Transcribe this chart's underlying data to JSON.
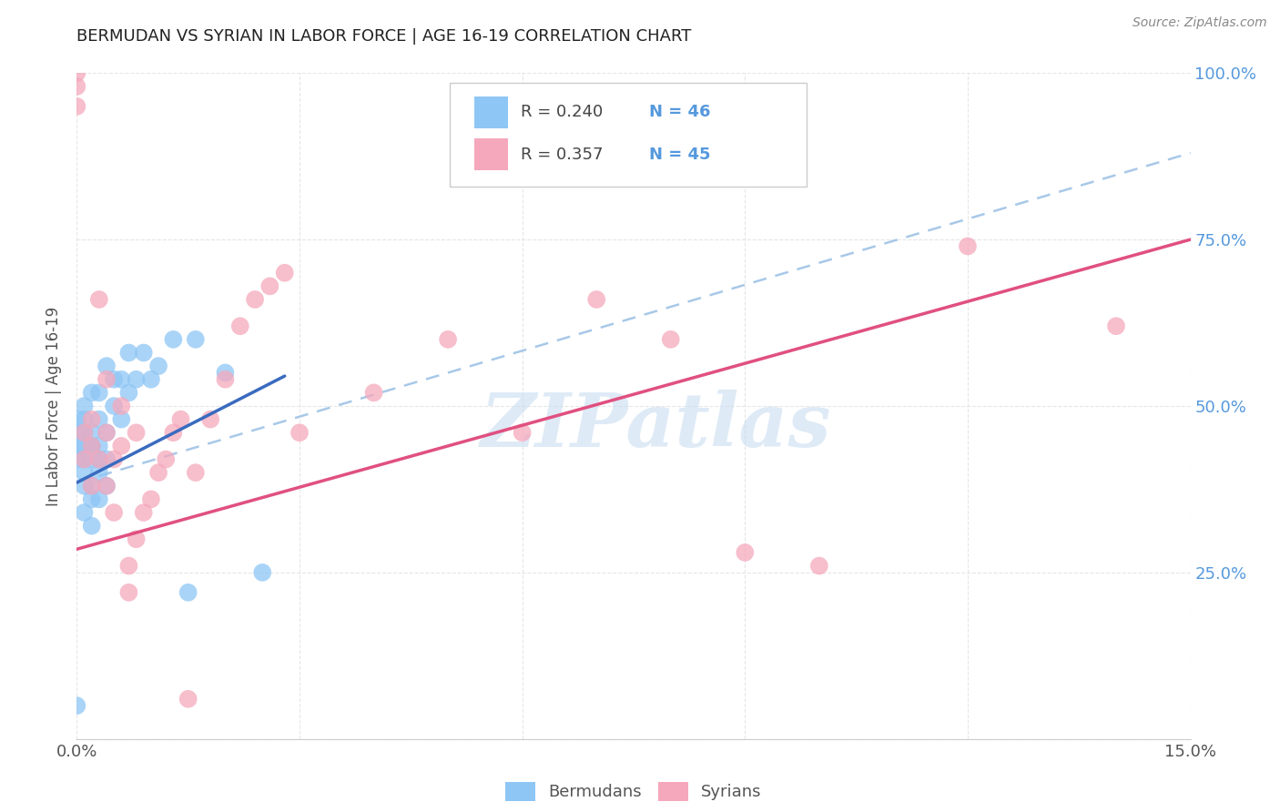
{
  "title": "BERMUDAN VS SYRIAN IN LABOR FORCE | AGE 16-19 CORRELATION CHART",
  "source": "Source: ZipAtlas.com",
  "ylabel": "In Labor Force | Age 16-19",
  "xlim": [
    0.0,
    0.15
  ],
  "ylim": [
    0.0,
    1.0
  ],
  "xtick_positions": [
    0.0,
    0.03,
    0.06,
    0.09,
    0.12,
    0.15
  ],
  "xticklabels": [
    "0.0%",
    "",
    "",
    "",
    "",
    "15.0%"
  ],
  "ytick_positions": [
    0.0,
    0.25,
    0.5,
    0.75,
    1.0
  ],
  "ytick_right_labels": [
    "",
    "25.0%",
    "50.0%",
    "75.0%",
    "100.0%"
  ],
  "bermudan_color": "#8ec6f5",
  "syrian_color": "#f5a8bc",
  "bermudan_line_color": "#3a6bbf",
  "syrian_line_color": "#e05080",
  "dashed_line_color": "#a8c8e8",
  "background_color": "#ffffff",
  "grid_color": "#e0e0e0",
  "watermark_text": "ZIPatlas",
  "watermark_color": "#c8ddf0",
  "legend_label1": "R = 0.240  N = 46",
  "legend_label2": "R = 0.357  N = 45",
  "bottom_label1": "Bermudans",
  "bottom_label2": "Syrians",
  "title_color": "#222222",
  "source_color": "#888888",
  "axis_label_color": "#555555",
  "right_tick_color": "#5599dd",
  "bermudan_x": [
    0.0,
    0.0,
    0.0,
    0.0,
    0.0,
    0.001,
    0.001,
    0.001,
    0.001,
    0.001,
    0.001,
    0.002,
    0.002,
    0.002,
    0.002,
    0.002,
    0.003,
    0.003,
    0.003,
    0.003,
    0.004,
    0.004,
    0.004,
    0.005,
    0.005,
    0.006,
    0.006,
    0.007,
    0.007,
    0.008,
    0.009,
    0.01,
    0.011,
    0.013,
    0.015,
    0.016,
    0.02,
    0.025,
    0.001,
    0.002,
    0.003,
    0.001,
    0.002,
    0.004,
    0.003,
    0.002
  ],
  "bermudan_y": [
    0.05,
    0.42,
    0.44,
    0.46,
    0.48,
    0.38,
    0.42,
    0.44,
    0.46,
    0.48,
    0.5,
    0.36,
    0.42,
    0.44,
    0.46,
    0.52,
    0.4,
    0.44,
    0.48,
    0.52,
    0.42,
    0.46,
    0.56,
    0.5,
    0.54,
    0.48,
    0.54,
    0.52,
    0.58,
    0.54,
    0.58,
    0.54,
    0.56,
    0.6,
    0.22,
    0.6,
    0.55,
    0.25,
    0.4,
    0.38,
    0.36,
    0.34,
    0.32,
    0.38,
    0.42,
    0.44
  ],
  "syrian_x": [
    0.0,
    0.0,
    0.0,
    0.001,
    0.001,
    0.002,
    0.002,
    0.002,
    0.003,
    0.003,
    0.004,
    0.004,
    0.004,
    0.005,
    0.005,
    0.006,
    0.006,
    0.007,
    0.007,
    0.008,
    0.008,
    0.009,
    0.01,
    0.011,
    0.012,
    0.013,
    0.014,
    0.015,
    0.016,
    0.018,
    0.02,
    0.022,
    0.024,
    0.026,
    0.028,
    0.03,
    0.04,
    0.05,
    0.06,
    0.07,
    0.08,
    0.09,
    0.1,
    0.12,
    0.14
  ],
  "syrian_y": [
    0.95,
    0.98,
    1.0,
    0.42,
    0.46,
    0.38,
    0.44,
    0.48,
    0.42,
    0.66,
    0.38,
    0.46,
    0.54,
    0.34,
    0.42,
    0.44,
    0.5,
    0.22,
    0.26,
    0.3,
    0.46,
    0.34,
    0.36,
    0.4,
    0.42,
    0.46,
    0.48,
    0.06,
    0.4,
    0.48,
    0.54,
    0.62,
    0.66,
    0.68,
    0.7,
    0.46,
    0.52,
    0.6,
    0.46,
    0.66,
    0.6,
    0.28,
    0.26,
    0.74,
    0.62
  ],
  "bermudan_line_x0": 0.0,
  "bermudan_line_y0": 0.385,
  "bermudan_line_x1": 0.028,
  "bermudan_line_y1": 0.545,
  "syrian_line_x0": 0.0,
  "syrian_line_y0": 0.285,
  "syrian_line_x1": 0.15,
  "syrian_line_y1": 0.75,
  "dashed_line_x0": 0.0,
  "dashed_line_y0": 0.385,
  "dashed_line_x1": 0.15,
  "dashed_line_y1": 0.88
}
